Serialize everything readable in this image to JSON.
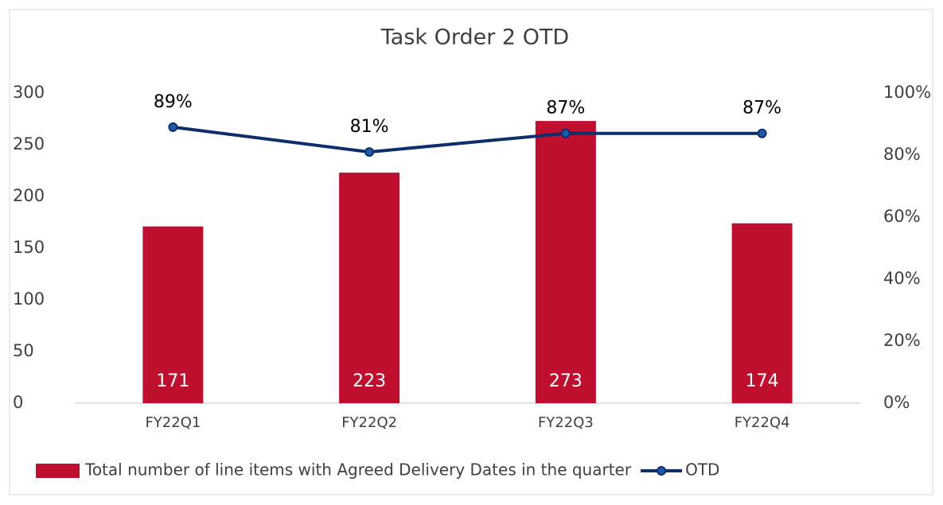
{
  "chart_data": {
    "type": "bar",
    "title": "Task Order 2 OTD",
    "categories": [
      "FY22Q1",
      "FY22Q2",
      "FY22Q3",
      "FY22Q4"
    ],
    "series": [
      {
        "name": "Total number of line items with Agreed Delivery Dates in the quarter",
        "type": "bar",
        "color": "#be0f2f",
        "values": [
          171,
          223,
          273,
          174
        ]
      },
      {
        "name": "OTD",
        "type": "line",
        "axis": "y2",
        "color": "#0d2e6b",
        "values": [
          89,
          81,
          87,
          87
        ],
        "value_labels": [
          "89%",
          "81%",
          "87%",
          "87%"
        ]
      }
    ],
    "ylim": [
      0,
      300
    ],
    "yticks": [
      0,
      50,
      100,
      150,
      200,
      250,
      300
    ],
    "y2lim": [
      0,
      100
    ],
    "y2ticks": [
      {
        "value": 0,
        "label": "0%"
      },
      {
        "value": 20,
        "label": "20%"
      },
      {
        "value": 40,
        "label": "40%"
      },
      {
        "value": 60,
        "label": "60%"
      },
      {
        "value": 80,
        "label": "80%"
      },
      {
        "value": 100,
        "label": "100%"
      }
    ],
    "legend": "bottom"
  }
}
